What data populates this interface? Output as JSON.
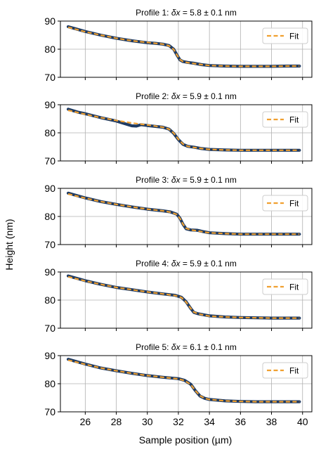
{
  "figure": {
    "xlabel": "Sample position (µm)",
    "ylabel": "Height (nm)"
  },
  "chart_data": [
    {
      "type": "line",
      "title_prefix": "Profile 1: ",
      "title_symbol": "δx",
      "title_suffix": " = 5.8 ± 0.1 nm",
      "xlim": [
        24.4,
        40.6
      ],
      "ylim": [
        70,
        90
      ],
      "xticks": [
        26,
        28,
        30,
        32,
        34,
        36,
        38,
        40
      ],
      "yticks": [
        70,
        80,
        90
      ],
      "grid": true,
      "legend_position": "top-right",
      "series": [
        {
          "name": "",
          "role": "data",
          "color": "#1f3b63",
          "x": [
            24.9,
            26,
            27,
            28,
            29,
            30,
            30.5,
            31,
            31.4,
            31.7,
            31.9,
            32.1,
            32.3,
            32.6,
            33,
            33.5,
            34,
            35,
            36,
            37,
            38,
            39,
            39.8
          ],
          "y": [
            88,
            86.3,
            85.0,
            83.9,
            83.0,
            82.3,
            82.1,
            81.8,
            81.3,
            80.0,
            78.0,
            76.2,
            75.6,
            75.3,
            75.0,
            74.5,
            74.2,
            74.0,
            73.9,
            73.9,
            73.9,
            74.0,
            74.0
          ]
        },
        {
          "name": "Fit",
          "role": "fit",
          "color": "#f0a030",
          "x": [
            24.9,
            26,
            27,
            28,
            29,
            30,
            30.5,
            31,
            31.4,
            31.7,
            31.9,
            32.1,
            32.3,
            32.6,
            33,
            33.5,
            34,
            35,
            36,
            37,
            38,
            39,
            39.8
          ],
          "y": [
            87.8,
            86.2,
            85.0,
            83.9,
            83.0,
            82.4,
            82.1,
            81.8,
            81.2,
            79.9,
            78.0,
            76.3,
            75.6,
            75.2,
            74.9,
            74.5,
            74.2,
            74.0,
            73.9,
            73.9,
            73.9,
            74.0,
            74.0
          ]
        }
      ]
    },
    {
      "type": "line",
      "title_prefix": "Profile 2: ",
      "title_symbol": "δx",
      "title_suffix": " = 5.9 ± 0.1 nm",
      "xlim": [
        24.4,
        40.6
      ],
      "ylim": [
        70,
        90
      ],
      "xticks": [
        26,
        28,
        30,
        32,
        34,
        36,
        38,
        40
      ],
      "yticks": [
        70,
        80,
        90
      ],
      "grid": true,
      "legend_position": "top-right",
      "series": [
        {
          "name": "",
          "role": "data",
          "color": "#1f3b63",
          "x": [
            24.9,
            25.5,
            26,
            27,
            28,
            28.7,
            29.0,
            29.3,
            29.6,
            30,
            31,
            31.4,
            31.7,
            32.0,
            32.3,
            32.6,
            33,
            33.5,
            34,
            35,
            36,
            37,
            38,
            39,
            39.8
          ],
          "y": [
            88.4,
            87.4,
            86.8,
            85.4,
            84.2,
            83.0,
            82.5,
            82.4,
            82.9,
            82.6,
            82.0,
            81.3,
            79.8,
            77.6,
            75.9,
            75.2,
            74.9,
            74.4,
            74.1,
            73.9,
            73.8,
            73.8,
            73.8,
            73.8,
            73.8
          ]
        },
        {
          "name": "Fit",
          "role": "fit",
          "color": "#f0a030",
          "x": [
            24.9,
            26,
            27,
            28,
            29,
            30,
            31,
            31.4,
            31.7,
            32.0,
            32.3,
            32.6,
            33,
            33.5,
            34,
            35,
            36,
            37,
            38,
            39,
            39.8
          ],
          "y": [
            88.0,
            86.6,
            85.4,
            84.4,
            83.5,
            82.8,
            82.0,
            81.3,
            79.9,
            77.7,
            76.0,
            75.2,
            74.8,
            74.4,
            74.1,
            73.9,
            73.8,
            73.8,
            73.8,
            73.8,
            73.8
          ]
        }
      ]
    },
    {
      "type": "line",
      "title_prefix": "Profile 3: ",
      "title_symbol": "δx",
      "title_suffix": " = 5.9 ± 0.1 nm",
      "xlim": [
        24.4,
        40.6
      ],
      "ylim": [
        70,
        90
      ],
      "xticks": [
        26,
        28,
        30,
        32,
        34,
        36,
        38,
        40
      ],
      "yticks": [
        70,
        80,
        90
      ],
      "grid": true,
      "legend_position": "top-right",
      "series": [
        {
          "name": "",
          "role": "data",
          "color": "#1f3b63",
          "x": [
            24.9,
            26,
            27,
            28,
            29,
            30,
            31,
            31.5,
            31.9,
            32.1,
            32.3,
            32.5,
            32.8,
            33.2,
            33.6,
            34,
            35,
            36,
            37,
            38,
            39,
            39.8
          ],
          "y": [
            88.3,
            86.6,
            85.3,
            84.3,
            83.4,
            82.6,
            82.0,
            81.6,
            80.8,
            79.4,
            77.2,
            75.6,
            75.2,
            75.1,
            74.6,
            74.2,
            73.9,
            73.7,
            73.7,
            73.7,
            73.7,
            73.7
          ]
        },
        {
          "name": "Fit",
          "role": "fit",
          "color": "#f0a030",
          "x": [
            24.9,
            26,
            27,
            28,
            29,
            30,
            31,
            31.5,
            31.9,
            32.1,
            32.3,
            32.5,
            32.8,
            33.2,
            33.6,
            34,
            35,
            36,
            37,
            38,
            39,
            39.8
          ],
          "y": [
            88.0,
            86.5,
            85.3,
            84.3,
            83.4,
            82.6,
            82.0,
            81.5,
            80.7,
            79.3,
            77.2,
            75.8,
            75.2,
            74.9,
            74.5,
            74.2,
            73.9,
            73.7,
            73.7,
            73.7,
            73.7,
            73.7
          ]
        }
      ]
    },
    {
      "type": "line",
      "title_prefix": "Profile 4: ",
      "title_symbol": "δx",
      "title_suffix": " = 5.9 ± 0.1 nm",
      "xlim": [
        24.4,
        40.6
      ],
      "ylim": [
        70,
        90
      ],
      "xticks": [
        26,
        28,
        30,
        32,
        34,
        36,
        38,
        40
      ],
      "yticks": [
        70,
        80,
        90
      ],
      "grid": true,
      "legend_position": "top-right",
      "series": [
        {
          "name": "",
          "role": "data",
          "color": "#1f3b63",
          "x": [
            24.9,
            26,
            27,
            28,
            29,
            30,
            31,
            31.8,
            32.2,
            32.5,
            32.8,
            33.0,
            33.3,
            33.6,
            34,
            35,
            36,
            37,
            38,
            39,
            39.8
          ],
          "y": [
            88.6,
            86.9,
            85.6,
            84.5,
            83.7,
            82.9,
            82.2,
            81.7,
            81.0,
            79.4,
            77.0,
            75.6,
            75.1,
            74.8,
            74.4,
            74.0,
            73.8,
            73.7,
            73.6,
            73.6,
            73.6
          ]
        },
        {
          "name": "Fit",
          "role": "fit",
          "color": "#f0a030",
          "x": [
            24.9,
            26,
            27,
            28,
            29,
            30,
            31,
            31.8,
            32.2,
            32.5,
            32.8,
            33.0,
            33.3,
            33.6,
            34,
            35,
            36,
            37,
            38,
            39,
            39.8
          ],
          "y": [
            88.3,
            86.8,
            85.6,
            84.5,
            83.7,
            82.9,
            82.2,
            81.6,
            80.9,
            79.3,
            77.0,
            75.7,
            75.1,
            74.7,
            74.3,
            74.0,
            73.8,
            73.7,
            73.6,
            73.6,
            73.6
          ]
        }
      ]
    },
    {
      "type": "line",
      "title_prefix": "Profile 5: ",
      "title_symbol": "δx",
      "title_suffix": " = 6.1 ± 0.1 nm",
      "xlim": [
        24.4,
        40.6
      ],
      "ylim": [
        70,
        90
      ],
      "xticks": [
        26,
        28,
        30,
        32,
        34,
        36,
        38,
        40
      ],
      "yticks": [
        70,
        80,
        90
      ],
      "grid": true,
      "legend_position": "top-right",
      "series": [
        {
          "name": "",
          "role": "data",
          "color": "#1f3b63",
          "x": [
            24.9,
            26,
            27,
            28,
            29,
            30,
            31,
            32,
            32.4,
            32.8,
            33.1,
            33.4,
            33.7,
            34,
            35,
            36,
            37,
            38,
            39,
            39.8
          ],
          "y": [
            88.7,
            87.0,
            85.6,
            84.6,
            83.7,
            82.9,
            82.3,
            81.8,
            81.2,
            79.8,
            77.5,
            75.6,
            74.8,
            74.4,
            73.9,
            73.7,
            73.6,
            73.6,
            73.6,
            73.6
          ]
        },
        {
          "name": "Fit",
          "role": "fit",
          "color": "#f0a030",
          "x": [
            24.9,
            26,
            27,
            28,
            29,
            30,
            31,
            32,
            32.4,
            32.8,
            33.1,
            33.4,
            33.7,
            34,
            35,
            36,
            37,
            38,
            39,
            39.8
          ],
          "y": [
            88.4,
            86.9,
            85.6,
            84.6,
            83.7,
            82.9,
            82.3,
            81.7,
            81.1,
            79.7,
            77.5,
            75.7,
            74.8,
            74.4,
            73.9,
            73.7,
            73.6,
            73.6,
            73.6,
            73.6
          ]
        }
      ]
    }
  ]
}
